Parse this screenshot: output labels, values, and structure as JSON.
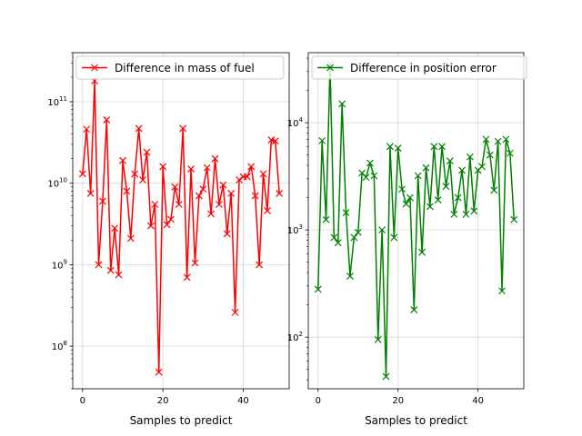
{
  "chart_data": [
    {
      "type": "line",
      "xlabel": "Samples to predict",
      "ylabel": "",
      "yscale": "log",
      "xlim": [
        -2.45,
        51.45
      ],
      "ylim": [
        30000000.0,
        400000000000.0
      ],
      "xticks": [
        0,
        20,
        40
      ],
      "xtick_labels": [
        "0",
        "20",
        "40"
      ],
      "yticks": [
        100000000.0,
        1000000000.0,
        10000000000.0,
        100000000000.0
      ],
      "ytick_labels": [
        "10^8",
        "10^9",
        "10^10",
        "10^11"
      ],
      "grid": true,
      "legend_position": "upper-left",
      "series": [
        {
          "name": "Difference in mass of fuel",
          "color": "#ff0000",
          "marker": "x",
          "x": [
            0,
            1,
            2,
            3,
            4,
            5,
            6,
            7,
            8,
            9,
            10,
            11,
            12,
            13,
            14,
            15,
            16,
            17,
            18,
            19,
            20,
            21,
            22,
            23,
            24,
            25,
            26,
            27,
            28,
            29,
            30,
            31,
            32,
            33,
            34,
            35,
            36,
            37,
            38,
            39,
            40,
            41,
            42,
            43,
            44,
            45,
            46,
            47,
            48,
            49
          ],
          "y": [
            13000000000.0,
            46000000000.0,
            7500000000.0,
            180000000000.0,
            1000000000.0,
            6000000000.0,
            60000000000.0,
            850000000.0,
            2800000000.0,
            750000000.0,
            19000000000.0,
            8000000000.0,
            2100000000.0,
            13000000000.0,
            47000000000.0,
            11000000000.0,
            24000000000.0,
            3000000000.0,
            5500000000.0,
            48000000.0,
            16000000000.0,
            3100000000.0,
            3600000000.0,
            9000000000.0,
            5500000000.0,
            47000000000.0,
            700000000.0,
            15000000000.0,
            1050000000.0,
            7000000000.0,
            8500000000.0,
            15500000000.0,
            4200000000.0,
            20000000000.0,
            5500000000.0,
            9500000000.0,
            2400000000.0,
            7500000000.0,
            260000000.0,
            11000000000.0,
            12000000000.0,
            12000000000.0,
            16000000000.0,
            7000000000.0,
            1000000000.0,
            13000000000.0,
            4600000000.0,
            34000000000.0,
            33000000000.0,
            7500000000.0
          ]
        }
      ]
    },
    {
      "type": "line",
      "xlabel": "Samples to predict",
      "ylabel": "",
      "yscale": "log",
      "xlim": [
        -2.45,
        51.45
      ],
      "ylim": [
        33,
        45000
      ],
      "xticks": [
        0,
        20,
        40
      ],
      "xtick_labels": [
        "0",
        "20",
        "40"
      ],
      "yticks": [
        100,
        1000,
        10000
      ],
      "ytick_labels": [
        "10^2",
        "10^3",
        "10^4"
      ],
      "grid": true,
      "legend_position": "upper-left",
      "series": [
        {
          "name": "Difference in position error",
          "color": "#008000",
          "marker": "x",
          "x": [
            0,
            1,
            2,
            3,
            4,
            5,
            6,
            7,
            8,
            9,
            10,
            11,
            12,
            13,
            14,
            15,
            16,
            17,
            18,
            19,
            20,
            21,
            22,
            23,
            24,
            25,
            26,
            27,
            28,
            29,
            30,
            31,
            32,
            33,
            34,
            35,
            36,
            37,
            38,
            39,
            40,
            41,
            42,
            43,
            44,
            45,
            46,
            47,
            48,
            49
          ],
          "y": [
            280,
            6800,
            1250,
            35000,
            850,
            760,
            15000,
            1450,
            370,
            850,
            950,
            3400,
            3100,
            4200,
            3200,
            95,
            1000,
            43,
            6000,
            850,
            5800,
            2400,
            1750,
            2000,
            180,
            3200,
            620,
            3800,
            1650,
            6000,
            1900,
            6000,
            2550,
            4400,
            1400,
            2000,
            3600,
            1400,
            4800,
            1500,
            3600,
            3900,
            7000,
            5000,
            2350,
            6700,
            270,
            7000,
            5200,
            1250
          ]
        }
      ]
    }
  ]
}
